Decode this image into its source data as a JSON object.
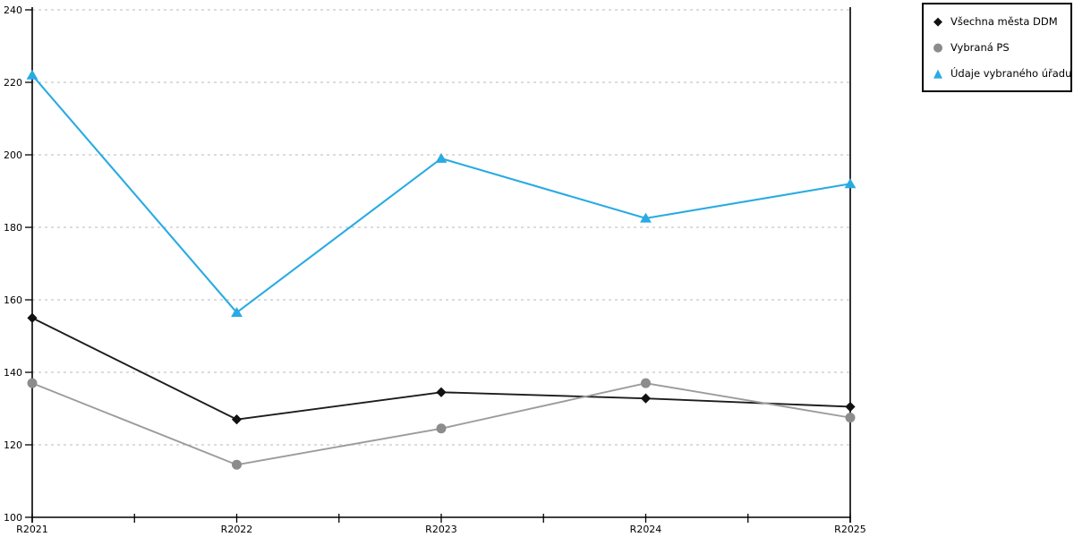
{
  "chart_data": {
    "type": "line",
    "title": "",
    "xlabel": "",
    "ylabel": "",
    "categories": [
      "R2021",
      "R2022",
      "R2023",
      "R2024",
      "R2025"
    ],
    "series": [
      {
        "name": "Všechna města DDM",
        "marker": "diamond-icon",
        "marker_color": "#111111",
        "line_color": "#1c1c1c",
        "values": [
          155,
          127,
          134.5,
          132.8,
          130.5
        ]
      },
      {
        "name": "Vybraná PS",
        "marker": "circle-icon",
        "marker_color": "#8c8c8c",
        "line_color": "#9c9c9c",
        "values": [
          137,
          114.5,
          124.5,
          137,
          127.5
        ]
      },
      {
        "name": "Údaje vybraného úřadu",
        "marker": "triangle-icon",
        "marker_color": "#29abe2",
        "line_color": "#29abe2",
        "values": [
          222,
          156.5,
          199,
          182.5,
          192
        ]
      }
    ],
    "ylim": [
      100,
      240
    ],
    "yticks": [
      100,
      120,
      140,
      160,
      180,
      200,
      220,
      240
    ],
    "grid": "horizontal-dashed",
    "gridline_color": "#c6c6c6",
    "axis_color": "#000000",
    "minor_xticks_between_categories": true,
    "legend_position": "top-right",
    "legend_marker_glyphs": {
      "diamond-icon": "◆",
      "circle-icon": "●",
      "triangle-icon": "▲"
    }
  },
  "colors": {
    "background": "#ffffff",
    "accent_cyan": "#29abe2",
    "series_gray": "#8c8c8c",
    "series_black": "#111111"
  }
}
